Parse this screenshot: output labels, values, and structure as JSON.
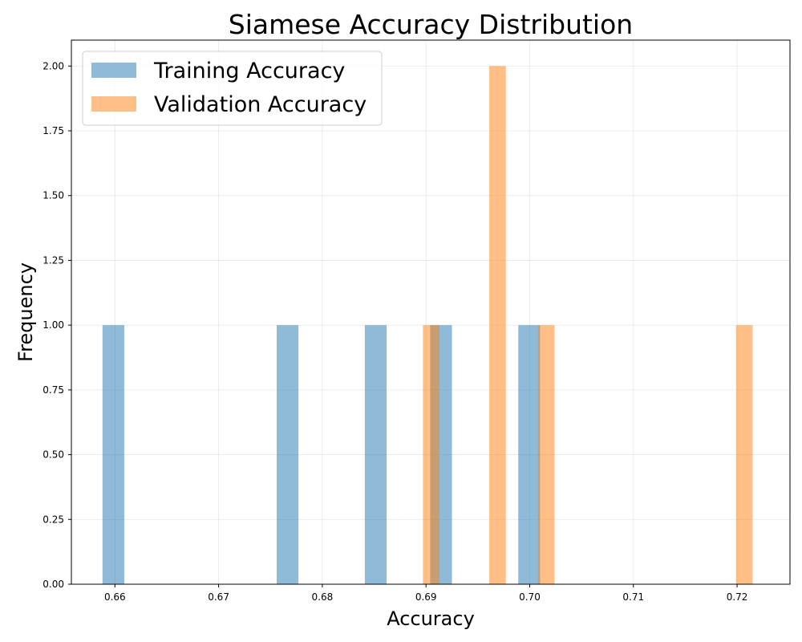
{
  "chart_data": {
    "type": "bar",
    "title": "Siamese Accuracy Distribution",
    "xlabel": "Accuracy",
    "ylabel": "Frequency",
    "xlim": [
      0.6558,
      0.7251
    ],
    "ylim": [
      0,
      2.1
    ],
    "grid": true,
    "legend_position": "top-left",
    "x_ticks": [
      "0.66",
      "0.67",
      "0.68",
      "0.69",
      "0.70",
      "0.71",
      "0.72"
    ],
    "x_tick_values": [
      0.66,
      0.67,
      0.68,
      0.69,
      0.7,
      0.71,
      0.72
    ],
    "y_ticks": [
      "0.00",
      "0.25",
      "0.50",
      "0.75",
      "1.00",
      "1.25",
      "1.50",
      "1.75",
      "2.00"
    ],
    "y_tick_values": [
      0,
      0.25,
      0.5,
      0.75,
      1.0,
      1.25,
      1.5,
      1.75,
      2.0
    ],
    "series": [
      {
        "name": "Training Accuracy",
        "color": "#1f77b4",
        "opacity": 0.5,
        "bins": [
          {
            "start": 0.6588,
            "end": 0.6609,
            "count": 1
          },
          {
            "start": 0.6756,
            "end": 0.6777,
            "count": 1
          },
          {
            "start": 0.6841,
            "end": 0.6862,
            "count": 1
          },
          {
            "start": 0.6904,
            "end": 0.6925,
            "count": 1
          },
          {
            "start": 0.6989,
            "end": 0.701,
            "count": 1
          }
        ]
      },
      {
        "name": "Validation Accuracy",
        "color": "#ff7f0e",
        "opacity": 0.5,
        "bins": [
          {
            "start": 0.6897,
            "end": 0.6913,
            "count": 1
          },
          {
            "start": 0.6961,
            "end": 0.6977,
            "count": 2
          },
          {
            "start": 0.7008,
            "end": 0.7024,
            "count": 1
          },
          {
            "start": 0.7199,
            "end": 0.7215,
            "count": 1
          }
        ]
      }
    ]
  }
}
